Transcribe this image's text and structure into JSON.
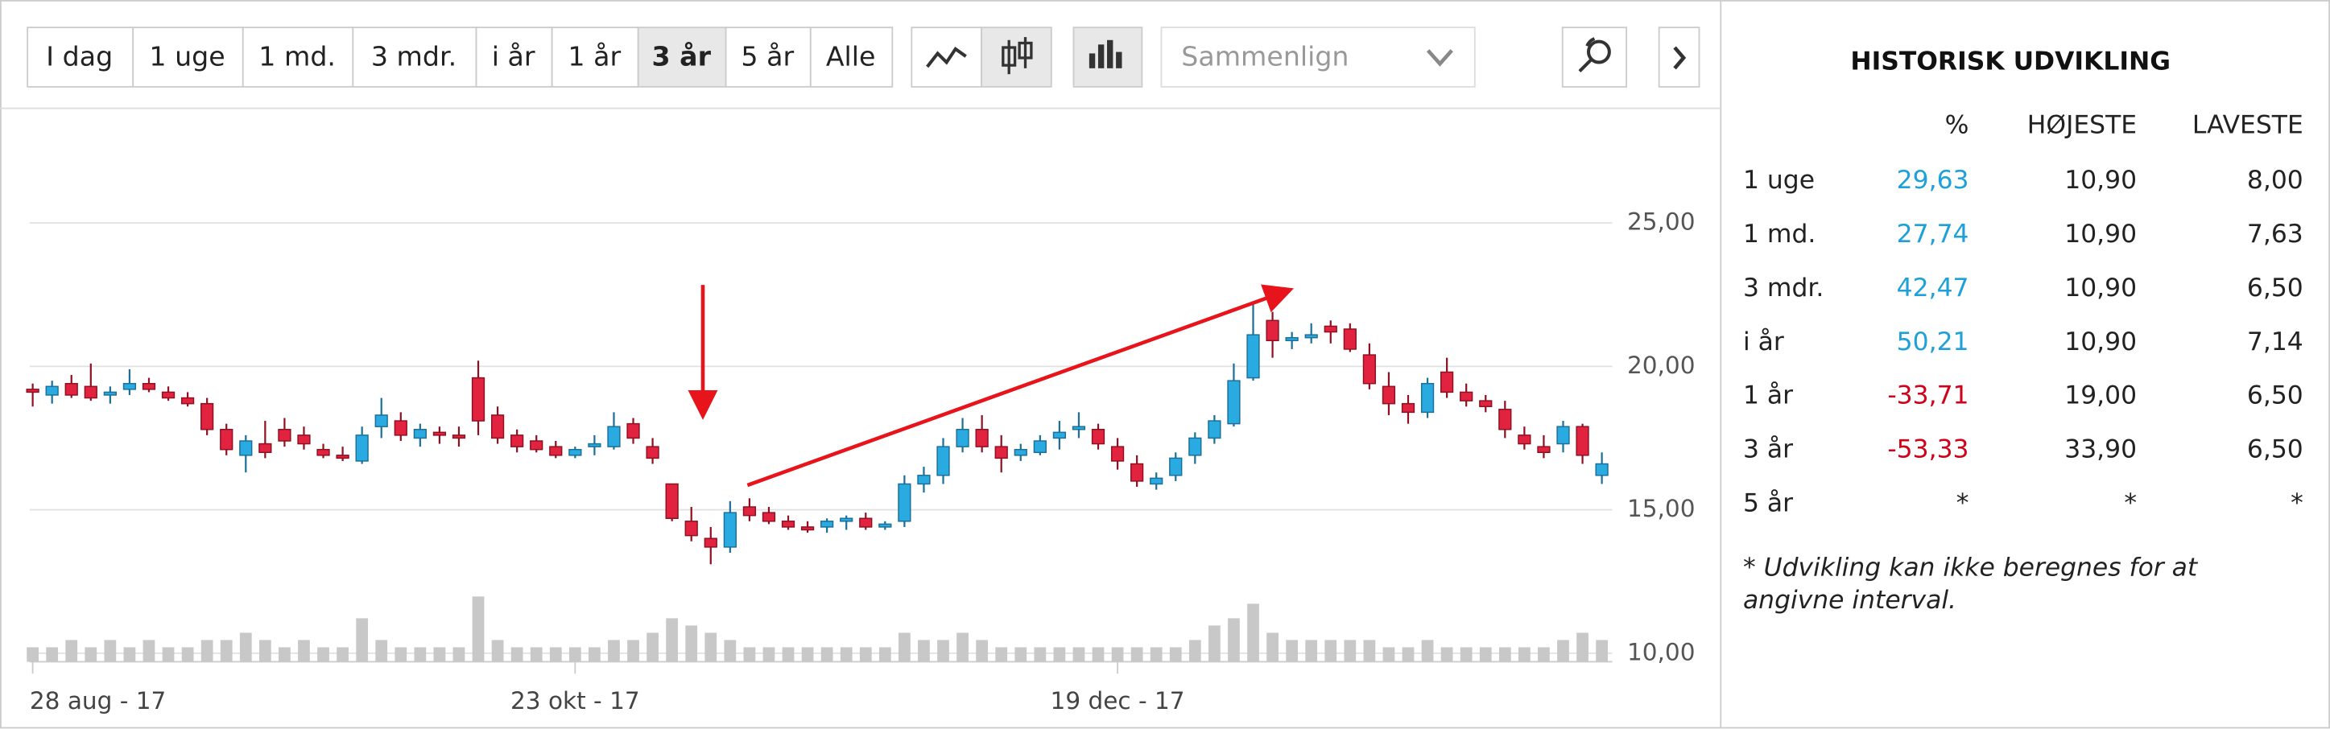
{
  "toolbar": {
    "ranges": [
      "I dag",
      "1 uge",
      "1 md.",
      "3 mdr.",
      "i år",
      "1 år",
      "3 år",
      "5 år",
      "Alle"
    ],
    "selected": "3 år",
    "compare": "Sammenlign"
  },
  "chart_data": {
    "type": "candlestick",
    "categories": [
      "28 aug - 17",
      null,
      null,
      null,
      null,
      null,
      null,
      null,
      null,
      null,
      null,
      null,
      null,
      null,
      null,
      null,
      null,
      null,
      null,
      null,
      null,
      null,
      null,
      null,
      null,
      null,
      null,
      null,
      "23 okt - 17",
      null,
      null,
      null,
      null,
      null,
      null,
      null,
      null,
      null,
      null,
      null,
      null,
      null,
      null,
      null,
      null,
      null,
      null,
      null,
      null,
      null,
      null,
      null,
      null,
      null,
      null,
      null,
      "19 dec - 17",
      null,
      null,
      null,
      null,
      null,
      null,
      null,
      null,
      null,
      null,
      null,
      null,
      null,
      null,
      null,
      null,
      null,
      null,
      null,
      null,
      null,
      null,
      null,
      null,
      null
    ],
    "open": [
      19.2,
      19.0,
      19.4,
      19.3,
      19.0,
      19.2,
      19.4,
      19.1,
      18.9,
      18.7,
      17.8,
      16.9,
      17.3,
      17.8,
      17.6,
      17.1,
      16.9,
      16.7,
      17.9,
      18.1,
      17.5,
      17.7,
      17.6,
      19.6,
      18.3,
      17.6,
      17.4,
      17.2,
      16.9,
      17.2,
      17.2,
      18.0,
      17.2,
      15.9,
      14.6,
      14.0,
      13.7,
      15.1,
      14.9,
      14.6,
      14.4,
      14.4,
      14.6,
      14.7,
      14.4,
      14.6,
      15.9,
      16.2,
      17.2,
      17.8,
      17.2,
      16.9,
      17.0,
      17.5,
      17.8,
      17.8,
      17.2,
      16.6,
      15.9,
      16.2,
      16.9,
      17.5,
      18.0,
      19.6,
      21.6,
      20.9,
      21.0,
      21.4,
      21.3,
      20.4,
      19.3,
      18.7,
      18.4,
      19.8,
      19.1,
      18.8,
      18.5,
      17.6,
      17.2,
      17.3,
      17.9,
      16.2
    ],
    "high": [
      19.4,
      19.5,
      19.7,
      20.1,
      19.3,
      19.9,
      19.6,
      19.3,
      19.1,
      18.9,
      18.0,
      17.6,
      18.1,
      18.2,
      17.9,
      17.3,
      17.2,
      17.9,
      18.9,
      18.4,
      18.0,
      17.9,
      17.9,
      20.2,
      18.6,
      17.8,
      17.6,
      17.4,
      17.2,
      17.6,
      18.4,
      18.2,
      17.5,
      15.9,
      15.1,
      14.4,
      15.3,
      15.4,
      15.1,
      14.8,
      14.6,
      14.7,
      14.8,
      14.9,
      14.6,
      16.2,
      16.5,
      17.5,
      18.2,
      18.3,
      17.6,
      17.3,
      17.6,
      18.1,
      18.4,
      18.0,
      17.5,
      16.9,
      16.3,
      17.0,
      17.7,
      18.3,
      20.1,
      22.2,
      21.9,
      21.2,
      21.5,
      21.6,
      21.5,
      20.8,
      19.8,
      19.0,
      19.6,
      20.3,
      19.4,
      19.0,
      18.8,
      17.9,
      17.6,
      18.1,
      18.0,
      17.0
    ],
    "low": [
      18.6,
      18.7,
      18.9,
      18.8,
      18.7,
      19.0,
      19.1,
      18.8,
      18.6,
      17.6,
      16.9,
      16.3,
      16.8,
      17.2,
      17.1,
      16.8,
      16.7,
      16.6,
      17.5,
      17.4,
      17.2,
      17.3,
      17.2,
      17.6,
      17.3,
      17.0,
      17.0,
      16.8,
      16.8,
      16.9,
      17.1,
      17.3,
      16.6,
      14.6,
      13.9,
      13.1,
      13.5,
      14.6,
      14.5,
      14.3,
      14.2,
      14.2,
      14.3,
      14.3,
      14.3,
      14.4,
      15.6,
      15.9,
      17.0,
      17.0,
      16.3,
      16.7,
      16.9,
      17.1,
      17.5,
      17.1,
      16.4,
      15.8,
      15.7,
      16.0,
      16.6,
      17.3,
      17.9,
      19.5,
      20.3,
      20.6,
      20.8,
      20.8,
      20.5,
      19.2,
      18.3,
      18.0,
      18.2,
      18.9,
      18.6,
      18.4,
      17.5,
      17.1,
      16.8,
      17.0,
      16.6,
      15.9
    ],
    "close": [
      19.1,
      19.3,
      19.0,
      18.9,
      19.1,
      19.4,
      19.2,
      18.9,
      18.7,
      17.8,
      17.1,
      17.4,
      17.0,
      17.4,
      17.3,
      16.9,
      16.8,
      17.6,
      18.3,
      17.6,
      17.8,
      17.6,
      17.5,
      18.1,
      17.5,
      17.2,
      17.1,
      16.9,
      17.1,
      17.3,
      17.9,
      17.5,
      16.8,
      14.7,
      14.1,
      13.7,
      14.9,
      14.8,
      14.6,
      14.4,
      14.3,
      14.6,
      14.7,
      14.4,
      14.5,
      15.9,
      16.2,
      17.2,
      17.8,
      17.2,
      16.8,
      17.1,
      17.4,
      17.7,
      17.9,
      17.3,
      16.7,
      16.0,
      16.1,
      16.8,
      17.5,
      18.1,
      19.5,
      21.1,
      20.9,
      21.0,
      21.1,
      21.2,
      20.6,
      19.4,
      18.7,
      18.4,
      19.4,
      19.1,
      18.8,
      18.6,
      17.8,
      17.3,
      17.0,
      17.9,
      16.9,
      16.6
    ],
    "volume": [
      2,
      2,
      3,
      2,
      3,
      2,
      3,
      2,
      2,
      3,
      3,
      4,
      3,
      2,
      3,
      2,
      2,
      6,
      3,
      2,
      2,
      2,
      2,
      9,
      3,
      2,
      2,
      2,
      2,
      2,
      3,
      3,
      4,
      6,
      5,
      4,
      3,
      2,
      2,
      2,
      2,
      2,
      2,
      2,
      2,
      4,
      3,
      3,
      4,
      3,
      2,
      2,
      2,
      2,
      2,
      2,
      2,
      2,
      2,
      2,
      3,
      5,
      6,
      8,
      4,
      3,
      3,
      3,
      3,
      3,
      2,
      2,
      3,
      2,
      2,
      2,
      2,
      2,
      2,
      3,
      4,
      3
    ],
    "up_color": "#29abe2",
    "down_color": "#e2233f",
    "volume_color": "#c8c8c8",
    "ylim": [
      9.7,
      27.6
    ],
    "yticks": [
      {
        "value": 10,
        "label": "10,00"
      },
      {
        "value": 15,
        "label": "15,00"
      },
      {
        "value": 20,
        "label": "20,00"
      },
      {
        "value": 25,
        "label": "25,00"
      }
    ],
    "grid": true
  },
  "table": {
    "title": "HISTORISK UDVIKLING",
    "headers": [
      "%",
      "HØJESTE",
      "LAVESTE"
    ],
    "rows": [
      [
        "1 uge",
        "29,63",
        "10,90",
        "8,00"
      ],
      [
        "1 md.",
        "27,74",
        "10,90",
        "7,63"
      ],
      [
        "3 mdr.",
        "42,47",
        "10,90",
        "6,50"
      ],
      [
        "i år",
        "50,21",
        "10,90",
        "7,14"
      ],
      [
        "1 år",
        "-33,71",
        "19,00",
        "6,50"
      ],
      [
        "3 år",
        "-53,33",
        "33,90",
        "6,50"
      ],
      [
        "5 år",
        "*",
        "*",
        "*"
      ]
    ],
    "footnote": [
      "* Udvikling kan ikke beregnes for at",
      "angivne interval."
    ]
  }
}
